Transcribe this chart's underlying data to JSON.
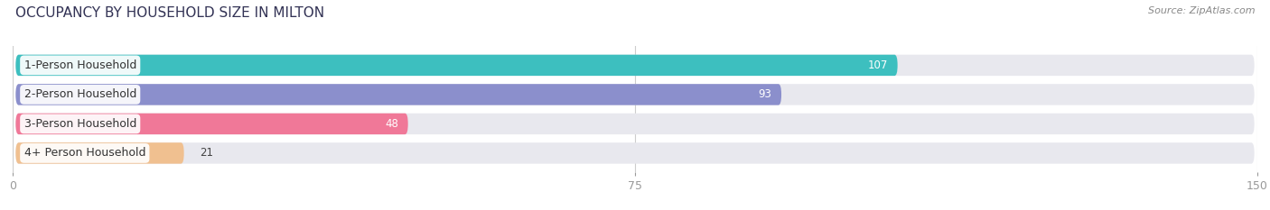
{
  "title": "OCCUPANCY BY HOUSEHOLD SIZE IN MILTON",
  "source": "Source: ZipAtlas.com",
  "categories": [
    "1-Person Household",
    "2-Person Household",
    "3-Person Household",
    "4+ Person Household"
  ],
  "values": [
    107,
    93,
    48,
    21
  ],
  "bar_colors": [
    "#3dbfbf",
    "#8b8fcc",
    "#f07898",
    "#f0c090"
  ],
  "bar_bg_color": "#e8e8ee",
  "xlim": [
    0,
    150
  ],
  "xticks": [
    0,
    75,
    150
  ],
  "figsize": [
    14.06,
    2.33
  ],
  "dpi": 100,
  "title_fontsize": 11,
  "label_fontsize": 9,
  "value_fontsize": 8.5,
  "source_fontsize": 8,
  "bar_height": 0.72,
  "grid_color": "#cccccc",
  "tick_color": "#999999",
  "background_color": "#ffffff",
  "value_inside_threshold": 30
}
